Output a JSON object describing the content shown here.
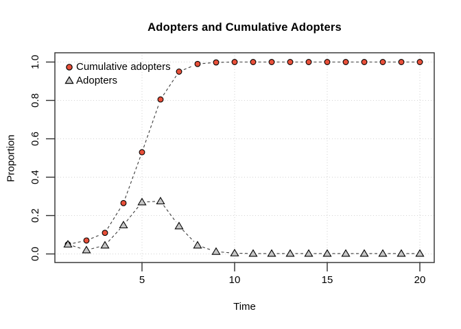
{
  "figure": {
    "title": "Adopters and Cumulative Adopters",
    "xlabel": "Time",
    "ylabel": "Proportion",
    "background": "#ffffff"
  },
  "legend": {
    "items": [
      {
        "label": "Cumulative adopters",
        "marker": "circle",
        "fill": "#e8503a",
        "stroke": "#000000"
      },
      {
        "label": "Adopters",
        "marker": "triangle",
        "fill": "#c6c6c6",
        "stroke": "#000000"
      }
    ]
  },
  "chart_data": {
    "type": "line",
    "title": "Adopters and Cumulative Adopters",
    "xlabel": "Time",
    "ylabel": "Proportion",
    "x": [
      1,
      2,
      3,
      4,
      5,
      6,
      7,
      8,
      9,
      10,
      11,
      12,
      13,
      14,
      15,
      16,
      17,
      18,
      19,
      20
    ],
    "series": [
      {
        "name": "Cumulative adopters",
        "marker": "circle",
        "color": "#e8503a",
        "line_style": "dashed",
        "values": [
          0.05,
          0.07,
          0.11,
          0.265,
          0.53,
          0.805,
          0.95,
          0.99,
          0.998,
          1.0,
          1.0,
          1.0,
          1.0,
          1.0,
          1.0,
          1.0,
          1.0,
          1.0,
          1.0,
          1.0
        ]
      },
      {
        "name": "Adopters",
        "marker": "triangle",
        "color": "#c6c6c6",
        "line_style": "dashed",
        "values": [
          0.05,
          0.02,
          0.045,
          0.15,
          0.27,
          0.275,
          0.145,
          0.045,
          0.012,
          0.004,
          0.002,
          0.002,
          0.002,
          0.002,
          0.002,
          0.002,
          0.002,
          0.002,
          0.002,
          0.002
        ]
      }
    ],
    "xlim": [
      0.24,
      20.76
    ],
    "ylim": [
      -0.04,
      1.04
    ],
    "x_ticks": [
      5,
      10,
      15,
      20
    ],
    "y_ticks": [
      "0.0",
      "0.2",
      "0.4",
      "0.6",
      "0.8",
      "1.0"
    ],
    "grid": true,
    "grid_style": "dotted",
    "grid_color": "#d2d2d2",
    "axis_color": "#2e2e2e",
    "line_color": "#3c3c3c",
    "legend_position": "top-left"
  }
}
